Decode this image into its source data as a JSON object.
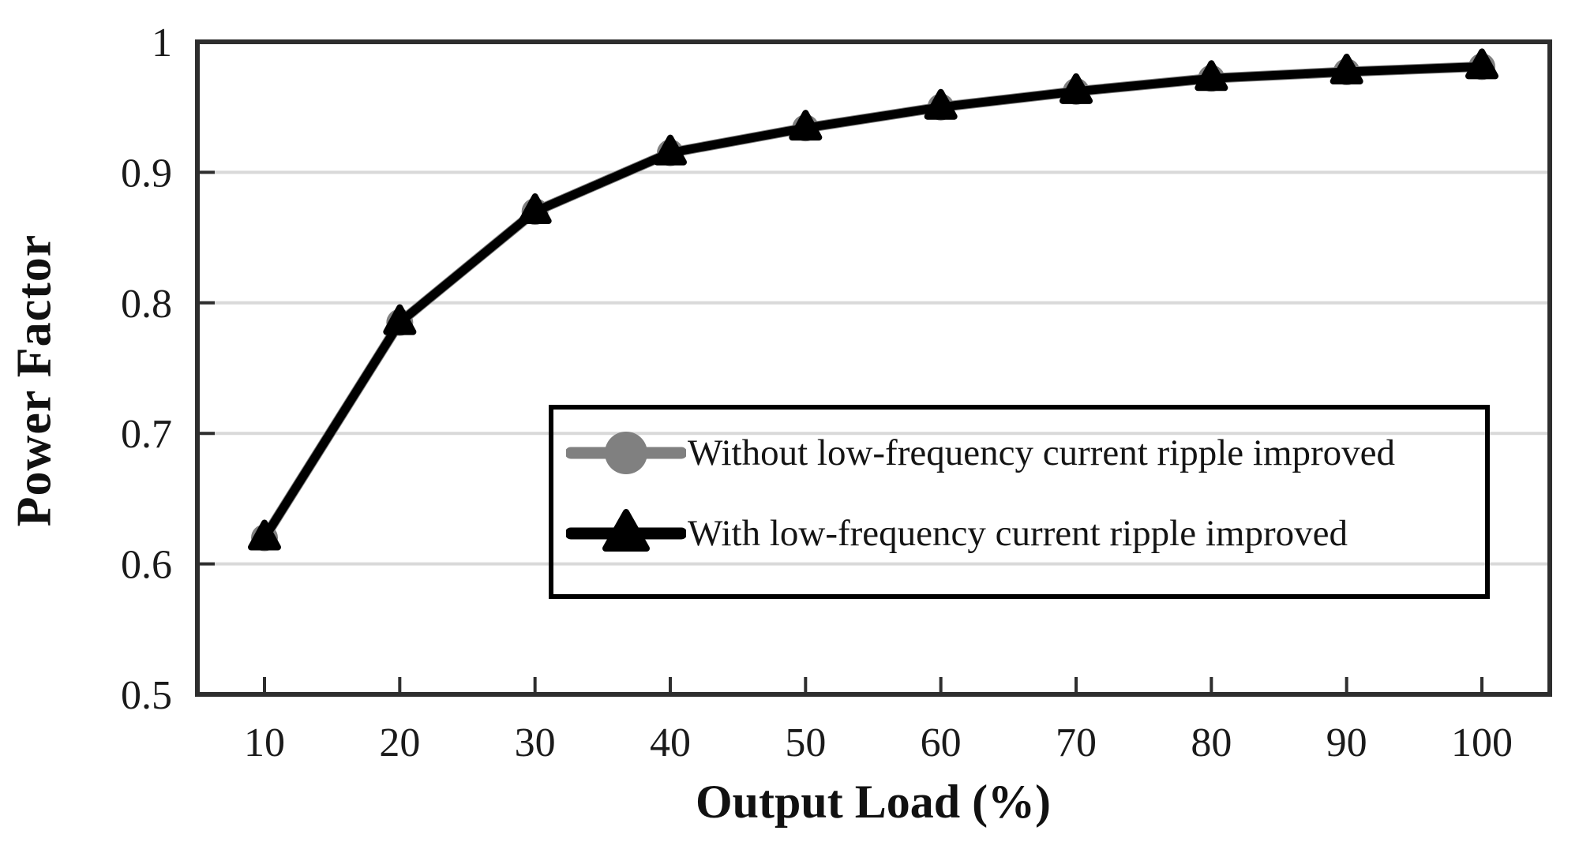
{
  "chart_data": {
    "type": "line",
    "title": "",
    "xlabel": "Output Load (%)",
    "ylabel": "Power Factor",
    "x": [
      10,
      20,
      30,
      40,
      50,
      60,
      70,
      80,
      90,
      100
    ],
    "x_tick_labels": [
      "10",
      "20",
      "30",
      "40",
      "50",
      "60",
      "70",
      "80",
      "90",
      "100"
    ],
    "y_ticks": [
      0.5,
      0.6,
      0.7,
      0.8,
      0.9,
      1
    ],
    "y_tick_labels": [
      "0.5",
      "0.6",
      "0.7",
      "0.8",
      "0.9",
      "1"
    ],
    "xlim": [
      5,
      105
    ],
    "ylim": [
      0.5,
      1.0
    ],
    "grid": "horizontal-only",
    "gridline_color": "#d9d9d9",
    "axis_color": "#2e2e2e",
    "text_color": "#1a1a1a",
    "legend_position": "inside-lower-right",
    "legend_border_color": "#000000",
    "series": [
      {
        "name": "Without low-frequency current ripple improved",
        "color": "#808080",
        "marker": "circle",
        "values": [
          0.62,
          0.785,
          0.87,
          0.915,
          0.934,
          0.95,
          0.962,
          0.972,
          0.977,
          0.981
        ]
      },
      {
        "name": "With low-frequency current ripple improved",
        "color": "#000000",
        "marker": "triangle",
        "values": [
          0.62,
          0.785,
          0.87,
          0.915,
          0.934,
          0.95,
          0.962,
          0.972,
          0.977,
          0.981
        ]
      }
    ]
  }
}
